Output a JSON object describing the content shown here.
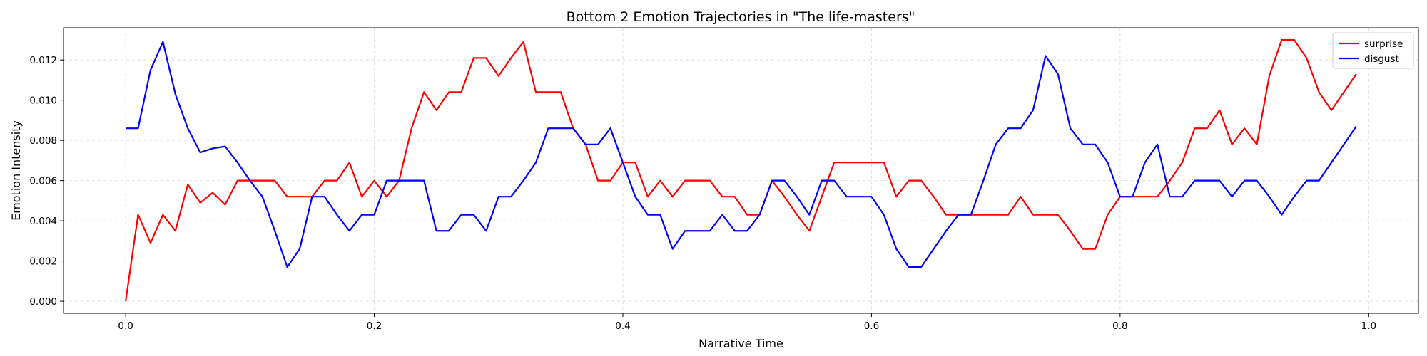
{
  "chart_data": {
    "type": "line",
    "title": "Bottom 2 Emotion Trajectories in \"The life-masters\"",
    "xlabel": "Narrative Time",
    "ylabel": "Emotion Intensity",
    "xlim": [
      -0.05,
      1.04
    ],
    "ylim": [
      -0.0006,
      0.0136
    ],
    "xticks": [
      0.0,
      0.2,
      0.4,
      0.6,
      0.8,
      1.0
    ],
    "xtick_labels": [
      "0.0",
      "0.2",
      "0.4",
      "0.6",
      "0.8",
      "1.0"
    ],
    "yticks": [
      0.0,
      0.002,
      0.004,
      0.006,
      0.008,
      0.01,
      0.012
    ],
    "ytick_labels": [
      "0.000",
      "0.002",
      "0.004",
      "0.006",
      "0.008",
      "0.010",
      "0.012"
    ],
    "grid": true,
    "legend_position": "top-right",
    "x": [
      0.0,
      0.01,
      0.02,
      0.03,
      0.04,
      0.05,
      0.06,
      0.07,
      0.08,
      0.09,
      0.1,
      0.11,
      0.12,
      0.13,
      0.14,
      0.15,
      0.16,
      0.17,
      0.18,
      0.19,
      0.2,
      0.21,
      0.22,
      0.23,
      0.24,
      0.25,
      0.26,
      0.27,
      0.28,
      0.29,
      0.3,
      0.31,
      0.32,
      0.33,
      0.34,
      0.35,
      0.36,
      0.37,
      0.38,
      0.39,
      0.4,
      0.41,
      0.42,
      0.43,
      0.44,
      0.45,
      0.46,
      0.47,
      0.48,
      0.49,
      0.5,
      0.51,
      0.52,
      0.53,
      0.54,
      0.55,
      0.56,
      0.57,
      0.58,
      0.59,
      0.6,
      0.61,
      0.62,
      0.63,
      0.64,
      0.65,
      0.66,
      0.67,
      0.68,
      0.69,
      0.7,
      0.71,
      0.72,
      0.73,
      0.74,
      0.75,
      0.76,
      0.77,
      0.78,
      0.79,
      0.8,
      0.81,
      0.82,
      0.83,
      0.84,
      0.85,
      0.86,
      0.87,
      0.88,
      0.89,
      0.9,
      0.91,
      0.92,
      0.93,
      0.94,
      0.95,
      0.96,
      0.97,
      0.98,
      0.99
    ],
    "series": [
      {
        "name": "surprise",
        "color": "#ff0000",
        "values": [
          0.0,
          0.0043,
          0.0029,
          0.0043,
          0.0035,
          0.0058,
          0.0049,
          0.0054,
          0.0048,
          0.006,
          0.006,
          0.006,
          0.006,
          0.0052,
          0.0052,
          0.0052,
          0.006,
          0.006,
          0.0069,
          0.0052,
          0.006,
          0.0052,
          0.006,
          0.0086,
          0.0104,
          0.0095,
          0.0104,
          0.0104,
          0.0121,
          0.0121,
          0.0112,
          0.0121,
          0.0129,
          0.0104,
          0.0104,
          0.0104,
          0.0086,
          0.0078,
          0.006,
          0.006,
          0.0069,
          0.0069,
          0.0052,
          0.006,
          0.0052,
          0.006,
          0.006,
          0.006,
          0.0052,
          0.0052,
          0.0043,
          0.0043,
          0.006,
          0.0052,
          0.0043,
          0.0035,
          0.0052,
          0.0069,
          0.0069,
          0.0069,
          0.0069,
          0.0069,
          0.0052,
          0.006,
          0.006,
          0.0052,
          0.0043,
          0.0043,
          0.0043,
          0.0043,
          0.0043,
          0.0043,
          0.0052,
          0.0043,
          0.0043,
          0.0043,
          0.0035,
          0.0026,
          0.0026,
          0.0043,
          0.0052,
          0.0052,
          0.0052,
          0.0052,
          0.006,
          0.0069,
          0.0086,
          0.0086,
          0.0095,
          0.0078,
          0.0086,
          0.0078,
          0.0112,
          0.013,
          0.013,
          0.0121,
          0.0104,
          0.0095,
          0.0104,
          0.0113
        ]
      },
      {
        "name": "disgust",
        "color": "#0000ff",
        "values": [
          0.0086,
          0.0086,
          0.0115,
          0.0129,
          0.0103,
          0.0086,
          0.0074,
          0.0076,
          0.0077,
          0.0069,
          0.006,
          0.0052,
          0.0035,
          0.0017,
          0.0026,
          0.0052,
          0.0052,
          0.0043,
          0.0035,
          0.0043,
          0.0043,
          0.006,
          0.006,
          0.006,
          0.006,
          0.0035,
          0.0035,
          0.0043,
          0.0043,
          0.0035,
          0.0052,
          0.0052,
          0.006,
          0.0069,
          0.0086,
          0.0086,
          0.0086,
          0.0078,
          0.0078,
          0.0086,
          0.0069,
          0.0052,
          0.0043,
          0.0043,
          0.0026,
          0.0035,
          0.0035,
          0.0035,
          0.0043,
          0.0035,
          0.0035,
          0.0043,
          0.006,
          0.006,
          0.0052,
          0.0043,
          0.006,
          0.006,
          0.0052,
          0.0052,
          0.0052,
          0.0043,
          0.0026,
          0.0017,
          0.0017,
          0.0026,
          0.0035,
          0.0043,
          0.0043,
          0.006,
          0.0078,
          0.0086,
          0.0086,
          0.0095,
          0.0122,
          0.0113,
          0.0086,
          0.0078,
          0.0078,
          0.0069,
          0.0052,
          0.0052,
          0.0069,
          0.0078,
          0.0052,
          0.0052,
          0.006,
          0.006,
          0.006,
          0.0052,
          0.006,
          0.006,
          0.0052,
          0.0043,
          0.0052,
          0.006,
          0.006,
          0.0069,
          0.0078,
          0.0087
        ]
      }
    ]
  }
}
